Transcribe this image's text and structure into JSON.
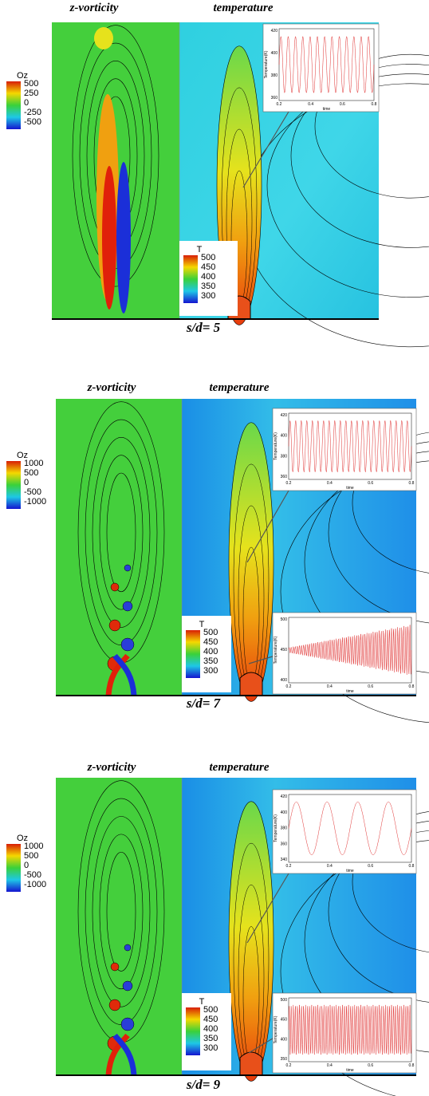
{
  "panels": [
    {
      "vorticity_title": "z-vorticity",
      "temperature_title": "temperature",
      "caption": "s/d= 5",
      "vorticity_legend": {
        "title": "Oz",
        "labels": [
          500,
          250,
          0,
          -250,
          -500
        ]
      },
      "temperature_legend": {
        "title": "T",
        "labels": [
          500,
          450,
          400,
          350,
          300
        ]
      },
      "insets": [
        {
          "y_label": "Temperature(K)",
          "x_label": "time",
          "y_ticks": [
            420,
            400,
            380,
            360
          ],
          "x_ticks": [
            0.2,
            0.4,
            0.6,
            0.8
          ]
        }
      ]
    },
    {
      "vorticity_title": "z-vorticity",
      "temperature_title": "temperature",
      "caption": "s/d= 7",
      "vorticity_legend": {
        "title": "Oz",
        "labels": [
          1000,
          500,
          0,
          -500,
          -1000
        ]
      },
      "temperature_legend": {
        "title": "T",
        "labels": [
          500,
          450,
          400,
          350,
          300
        ]
      },
      "insets": [
        {
          "y_label": "Temperature(K)",
          "x_label": "time",
          "y_ticks": [
            420,
            400,
            380,
            360
          ],
          "x_ticks": [
            0.2,
            0.4,
            0.6,
            0.8
          ]
        },
        {
          "y_label": "Temperature(K)",
          "x_label": "time",
          "y_ticks": [
            500,
            450,
            400
          ],
          "x_ticks": [
            0.2,
            0.4,
            0.6,
            0.8
          ]
        }
      ]
    },
    {
      "vorticity_title": "z-vorticity",
      "temperature_title": "temperature",
      "caption": "s/d= 9",
      "vorticity_legend": {
        "title": "Oz",
        "labels": [
          1000,
          500,
          0,
          -500,
          -1000
        ]
      },
      "temperature_legend": {
        "title": "T",
        "labels": [
          500,
          450,
          400,
          350,
          300
        ]
      },
      "insets": [
        {
          "y_label": "Temperature(K)",
          "x_label": "time",
          "y_ticks": [
            420,
            400,
            380,
            360,
            340
          ],
          "x_ticks": [
            0.2,
            0.4,
            0.6,
            0.8
          ]
        },
        {
          "y_label": "Temperature(K)",
          "x_label": "time",
          "y_ticks": [
            500,
            450,
            400,
            350
          ],
          "x_ticks": [
            0.2,
            0.4,
            0.6,
            0.8
          ]
        }
      ]
    }
  ]
}
